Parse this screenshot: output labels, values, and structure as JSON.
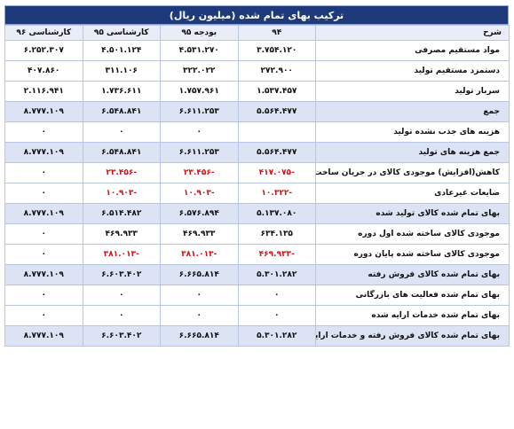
{
  "title": "ترکیب بهای تمام شده (میلیون ریال)",
  "headers": {
    "desc": "شرح",
    "y94": "۹۴",
    "b95": "بودجه ۹۵",
    "k95": "کارشناسی ۹۵",
    "k96": "کارشناسی ۹۶"
  },
  "rows": [
    {
      "desc": "مواد مستقیم مصرفی",
      "y94": "۳.۷۵۴.۱۲۰",
      "b95": "۴.۵۳۱.۲۷۰",
      "k95": "۴.۵۰۱.۱۲۴",
      "k96": "۶.۲۵۲.۳۰۷"
    },
    {
      "desc": "دستمزد مستقیم تولید",
      "y94": "۲۷۲.۹۰۰",
      "b95": "۳۲۲.۰۲۲",
      "k95": "۳۱۱.۱۰۶",
      "k96": "۴۰۷.۸۶۰"
    },
    {
      "desc": "سربار تولید",
      "y94": "۱.۵۳۷.۴۵۷",
      "b95": "۱.۷۵۷.۹۶۱",
      "k95": "۱.۷۳۶.۶۱۱",
      "k96": "۲.۱۱۶.۹۴۱"
    },
    {
      "desc": "جمع",
      "y94": "۵.۵۶۴.۴۷۷",
      "b95": "۶.۶۱۱.۲۵۳",
      "k95": "۶.۵۴۸.۸۴۱",
      "k96": "۸.۷۷۷.۱۰۹"
    },
    {
      "desc": "هزینه های جذب نشده تولید",
      "y94": "",
      "b95": "۰",
      "k95": "۰",
      "k96": "۰"
    },
    {
      "desc": "جمع هزینه های تولید",
      "y94": "۵.۵۶۴.۴۷۷",
      "b95": "۶.۶۱۱.۲۵۳",
      "k95": "۶.۵۴۸.۸۴۱",
      "k96": "۸.۷۷۷.۱۰۹"
    },
    {
      "desc": "کاهش(افزایش) موجودی کالای در جریان ساخت",
      "y94": "-۴۱۷.۰۷۵",
      "b95": "-۲۳.۴۵۶",
      "k95": "-۲۳.۴۵۶",
      "k96": "۰"
    },
    {
      "desc": "ضایعات غیرعادی",
      "y94": "-۱۰.۳۲۲",
      "b95": "-۱۰.۹۰۳",
      "k95": "-۱۰.۹۰۳",
      "k96": "۰"
    },
    {
      "desc": "بهای تمام شده کالای تولید شده",
      "y94": "۵.۱۳۷.۰۸۰",
      "b95": "۶.۵۷۶.۸۹۴",
      "k95": "۶.۵۱۴.۴۸۲",
      "k96": "۸.۷۷۷.۱۰۹"
    },
    {
      "desc": "موجودی کالای ساخته شده اول دوره",
      "y94": "۶۳۴.۱۳۵",
      "b95": "۴۶۹.۹۳۳",
      "k95": "۴۶۹.۹۳۳",
      "k96": "۰"
    },
    {
      "desc": "موجودی کالای ساخته شده پایان دوره",
      "y94": "-۴۶۹.۹۳۳",
      "b95": "-۳۸۱.۰۱۳",
      "k95": "-۳۸۱.۰۱۳",
      "k96": "۰"
    },
    {
      "desc": "بهای تمام شده کالای فروش رفته",
      "y94": "۵.۳۰۱.۲۸۲",
      "b95": "۶.۶۶۵.۸۱۴",
      "k95": "۶.۶۰۳.۴۰۲",
      "k96": "۸.۷۷۷.۱۰۹"
    },
    {
      "desc": "بهای تمام شده فعالیت های بازرگانی",
      "y94": "۰",
      "b95": "۰",
      "k95": "۰",
      "k96": "۰"
    },
    {
      "desc": "بهای تمام شده خدمات ارایه شده",
      "y94": "۰",
      "b95": "۰",
      "k95": "۰",
      "k96": "۰"
    },
    {
      "desc": "بهای تمام شده کالای فروش رفته و خدمات ارایه شده",
      "y94": "۵.۳۰۱.۲۸۲",
      "b95": "۶.۶۶۵.۸۱۴",
      "k95": "۶.۶۰۳.۴۰۲",
      "k96": "۸.۷۷۷.۱۰۹"
    }
  ],
  "shaded_rows": [
    3,
    5,
    8,
    11,
    14
  ],
  "colors": {
    "title_bg": "#1f3a7a",
    "shade": "#dbe3f5",
    "negative": "#d0121b",
    "border": "#b9c6e3"
  }
}
